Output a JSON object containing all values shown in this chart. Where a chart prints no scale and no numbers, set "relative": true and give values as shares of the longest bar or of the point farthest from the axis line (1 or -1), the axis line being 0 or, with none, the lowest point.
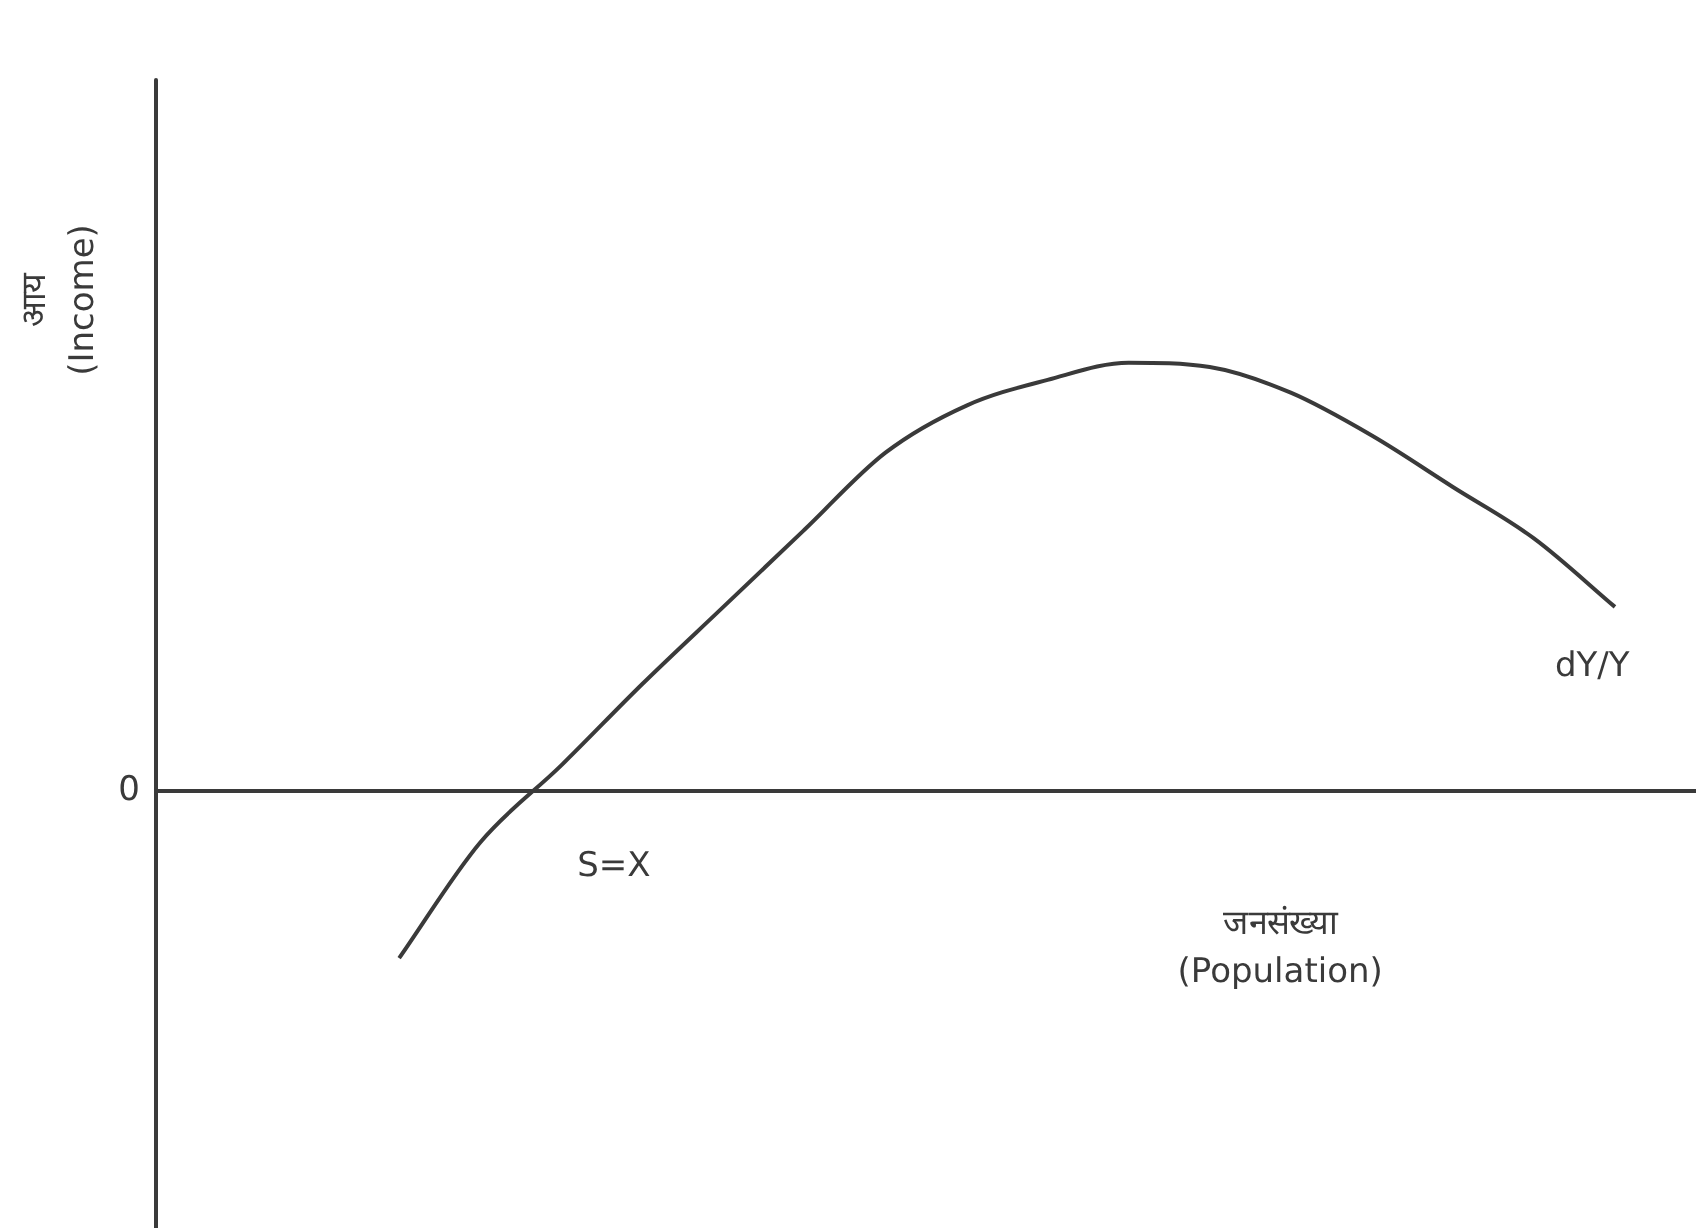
{
  "chart_data": {
    "type": "line",
    "relative": true,
    "xlabel": "जनसंख्या\n(Population)",
    "ylabel": "आय\n(Income)",
    "marker": "none",
    "categories": [
      null,
      null,
      null,
      null,
      null,
      null,
      null,
      null,
      null,
      null,
      null,
      null,
      null,
      null,
      null,
      null,
      null,
      null,
      null,
      null
    ],
    "series": [
      {
        "color": "#3a3a3a",
        "values": [
          null,
          null,
          null,
          -0.39,
          -0.12,
          0.06,
          0.25,
          0.43,
          0.61,
          0.79,
          0.9,
          0.96,
          1.0,
          0.99,
          0.93,
          0.83,
          0.71,
          0.59,
          0.43,
          null
        ]
      }
    ],
    "annotations": [
      "0",
      "S=X",
      "dY/Y"
    ]
  }
}
